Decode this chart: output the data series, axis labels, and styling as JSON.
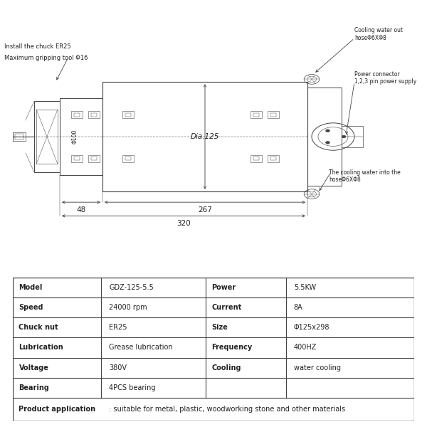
{
  "bg_color": "#ffffff",
  "line_color": "#444444",
  "text_color": "#222222",
  "table_data": {
    "rows": [
      [
        "Model",
        "GDZ-125-5.5",
        "Power",
        "5.5KW"
      ],
      [
        "Speed",
        "24000 rpm",
        "Current",
        "8A"
      ],
      [
        "Chuck nut",
        "ER25",
        "Size",
        "Φ125x298"
      ],
      [
        "Lubrication",
        "Grease lubrication",
        "Frequency",
        "400HZ"
      ],
      [
        "Voltage",
        "380V",
        "Cooling",
        "water cooling"
      ],
      [
        "Bearing",
        "4PCS bearing",
        "",
        ""
      ],
      [
        "Product application",
        ": suitable for metal, plastic, woodworking stone and other materials",
        "",
        ""
      ]
    ]
  },
  "annotations": {
    "top_left_1": "Install the chuck ER25",
    "top_left_2": "Maximum gripping tool Φ16",
    "cooling_out": "Cooling water out\nhoseΦ6XΦ8",
    "power_conn": "Power connector\n1,2,3 pin power supply",
    "cooling_in": "The cooling water into the\nhoseΦ6XΦ8",
    "dia_label": "Dia.125",
    "dim_48": "48",
    "dim_267": "267",
    "dim_320": "320",
    "dim_phi100": "Φ100"
  }
}
